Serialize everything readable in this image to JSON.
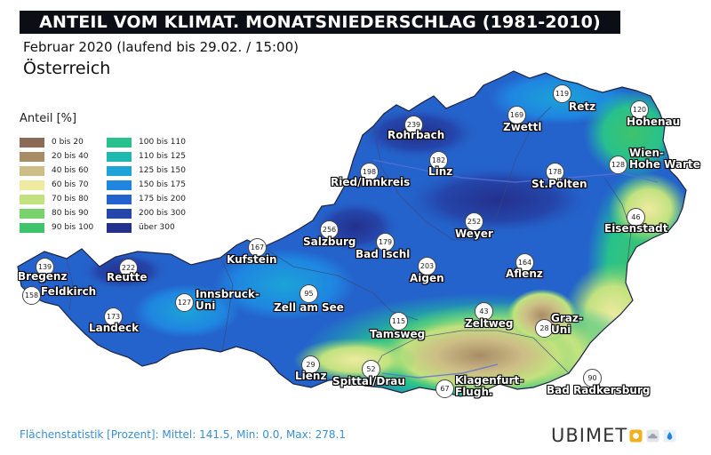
{
  "header": {
    "title": "ANTEIL VOM KLIMAT. MONATSNIEDERSCHLAG (1981-2010)",
    "subtitle": "Februar 2020 (laufend bis 29.02. / 15:00)",
    "region": "Österreich"
  },
  "legend": {
    "title": "Anteil [%]",
    "items": [
      {
        "label": "0 bis 20",
        "color": "#8b6a57"
      },
      {
        "label": "20 bis 40",
        "color": "#a88c66"
      },
      {
        "label": "40 bis 60",
        "color": "#cdbd86"
      },
      {
        "label": "60 bis 70",
        "color": "#eeeaa0"
      },
      {
        "label": "70 bis 80",
        "color": "#c2e27f"
      },
      {
        "label": "80 bis 90",
        "color": "#79d36d"
      },
      {
        "label": "90 bis 100",
        "color": "#3fc36b"
      },
      {
        "label": "100 bis 110",
        "color": "#28c18c"
      },
      {
        "label": "110 bis 125",
        "color": "#1db8b0"
      },
      {
        "label": "125 bis 150",
        "color": "#1ca3d7"
      },
      {
        "label": "150 bis 175",
        "color": "#1f86e0"
      },
      {
        "label": "175 bis 200",
        "color": "#2463cb"
      },
      {
        "label": "200 bis 300",
        "color": "#2546ab"
      },
      {
        "label": "über 300",
        "color": "#23308d"
      }
    ]
  },
  "stations": [
    {
      "name": "Retz",
      "value": "119"
    },
    {
      "name": "Hohenau",
      "value": "120"
    },
    {
      "name": "Zwettl",
      "value": "169"
    },
    {
      "name": "Rohrbach",
      "value": "239"
    },
    {
      "name": "Linz",
      "value": "182"
    },
    {
      "name": "Wien-Hohe Warte",
      "value": "128"
    },
    {
      "name": "Ried/Innkreis",
      "value": "198"
    },
    {
      "name": "St.Pölten",
      "value": "178"
    },
    {
      "name": "Eisenstadt",
      "value": "46"
    },
    {
      "name": "Weyer",
      "value": "252"
    },
    {
      "name": "Salzburg",
      "value": "256"
    },
    {
      "name": "Bad Ischl",
      "value": "179"
    },
    {
      "name": "Kufstein",
      "value": "167"
    },
    {
      "name": "Aigen",
      "value": "203"
    },
    {
      "name": "Aflenz",
      "value": "164"
    },
    {
      "name": "Bregenz",
      "value": "139"
    },
    {
      "name": "Reutte",
      "value": "222"
    },
    {
      "name": "Feldkirch",
      "value": "158"
    },
    {
      "name": "Innsbruck-Uni",
      "value": "127"
    },
    {
      "name": "Zell am See",
      "value": "95"
    },
    {
      "name": "Landeck",
      "value": "173"
    },
    {
      "name": "Zeltweg",
      "value": "43"
    },
    {
      "name": "Graz-Uni",
      "value": "28"
    },
    {
      "name": "Tamsweg",
      "value": "115"
    },
    {
      "name": "Lienz",
      "value": "29"
    },
    {
      "name": "Spittal/Drau",
      "value": "52"
    },
    {
      "name": "Klagenfurt-Flugh.",
      "value": "67"
    },
    {
      "name": "Bad Radkersburg",
      "value": "90"
    }
  ],
  "footer": {
    "stats": "Flächenstatistik [Prozent]: Mittel: 141.5, Min: 0.0, Max: 278.1",
    "brand": "UBIMET",
    "brand_icons": [
      "sun-icon",
      "cloud-icon",
      "raindrop-icon"
    ],
    "brand_colors": {
      "sun": "#f2b01e",
      "cloud": "#9aa3ad",
      "drop": "#1f86e0"
    }
  }
}
